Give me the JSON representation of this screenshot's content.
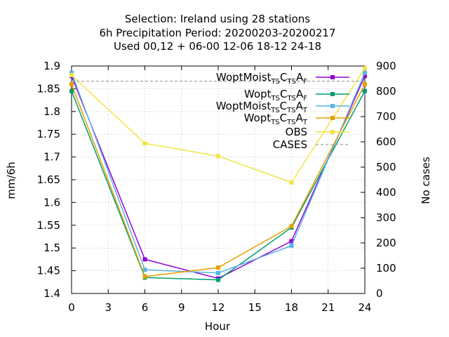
{
  "chart_data": {
    "type": "line",
    "title_lines": [
      "Selection: Ireland using    28 stations",
      "6h Precipitation   Period: 20200203-20200217",
      "Used  00,12  + 06-00 12-06 18-12 24-18"
    ],
    "xlabel": "Hour",
    "ylabel": "mm/6h",
    "y2label": "No cases",
    "xlim": [
      0,
      24
    ],
    "ylim": [
      1.4,
      1.9
    ],
    "y2lim": [
      0,
      900
    ],
    "x_ticks": [
      0,
      3,
      6,
      9,
      12,
      15,
      18,
      21,
      24
    ],
    "y_ticks": [
      "1.4",
      "1.45",
      "1.5",
      "1.55",
      "1.6",
      "1.65",
      "1.7",
      "1.75",
      "1.8",
      "1.85",
      "1.9"
    ],
    "y2_ticks": [
      0,
      100,
      200,
      300,
      400,
      500,
      600,
      700,
      800,
      900
    ],
    "grid": true,
    "legend_position": "top-right",
    "series": [
      {
        "name": "WoptMoist",
        "subs": [
          [
            "TS",
            "C"
          ],
          [
            "TS",
            "A"
          ],
          [
            "F",
            ""
          ]
        ],
        "color": "#9400d3",
        "marker": "square",
        "axis": "y",
        "x": [
          0,
          6,
          12,
          18,
          24
        ],
        "values": [
          1.878,
          1.475,
          1.433,
          1.515,
          1.878
        ]
      },
      {
        "name": "Wopt",
        "subs": [
          [
            "TS",
            "C"
          ],
          [
            "TS",
            "A"
          ],
          [
            "F",
            ""
          ]
        ],
        "color": "#009e73",
        "marker": "square",
        "axis": "y",
        "x": [
          0,
          6,
          12,
          18,
          24
        ],
        "values": [
          1.845,
          1.435,
          1.43,
          1.545,
          1.845
        ]
      },
      {
        "name": "WoptMoist",
        "subs": [
          [
            "TS",
            "C"
          ],
          [
            "TS",
            "A"
          ],
          [
            "T",
            ""
          ]
        ],
        "color": "#56b4e9",
        "marker": "square",
        "axis": "y",
        "x": [
          0,
          6,
          12,
          18,
          24
        ],
        "values": [
          1.885,
          1.452,
          1.445,
          1.505,
          1.885
        ]
      },
      {
        "name": "Wopt",
        "subs": [
          [
            "TS",
            "C"
          ],
          [
            "TS",
            "A"
          ],
          [
            "T",
            ""
          ]
        ],
        "color": "#e69f00",
        "marker": "square",
        "axis": "y",
        "x": [
          0,
          6,
          12,
          18,
          24
        ],
        "values": [
          1.86,
          1.437,
          1.457,
          1.548,
          1.86
        ]
      },
      {
        "name": "OBS",
        "subs": [],
        "color": "#f0e442",
        "marker": "square",
        "axis": "y",
        "x": [
          0,
          6,
          12,
          18,
          24
        ],
        "values": [
          1.88,
          1.73,
          1.702,
          1.644,
          1.895
        ]
      },
      {
        "name": "CASES",
        "subs": [],
        "color": "#a0a0a0",
        "marker": "none",
        "dashed": true,
        "axis": "y2",
        "x": [
          0,
          6,
          12,
          18,
          24
        ],
        "values": [
          840,
          840,
          840,
          840,
          840
        ]
      }
    ]
  }
}
